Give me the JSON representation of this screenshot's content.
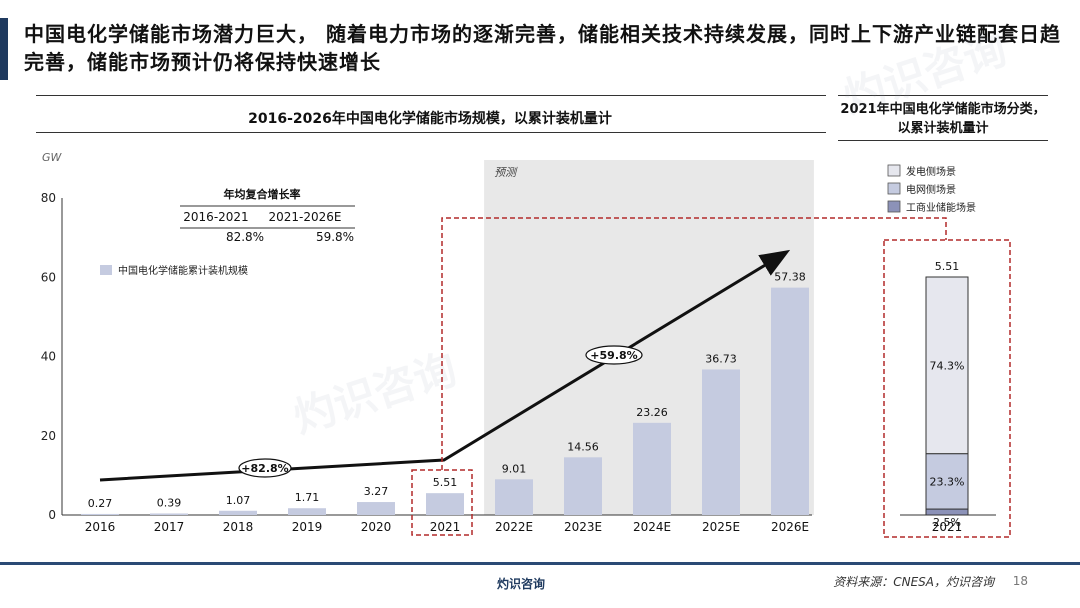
{
  "headline": "中国电化学储能市场潜力巨大， 随着电力市场的逐渐完善，储能相关技术持续发展，同时上下游产业链配套日趋完善，储能市场预计仍将保持快速增长",
  "page_number": "18",
  "source": "资料来源：CNESA，灼识咨询",
  "footer_logo": "灼识咨询",
  "watermark": "灼识咨询",
  "colors": {
    "bar": "#c5cbe0",
    "accent": "#1f3a5f",
    "dashed": "#b22a2a",
    "forecast_bg": "#e8e8e8"
  },
  "chart_data": [
    {
      "type": "bar",
      "title": "2016-2026年中国电化学储能市场规模，以累计装机量计",
      "ylabel": "GW",
      "ylim": [
        0,
        80
      ],
      "yticks": [
        0,
        20,
        40,
        60,
        80
      ],
      "categories": [
        "2016",
        "2017",
        "2018",
        "2019",
        "2020",
        "2021",
        "2022E",
        "2023E",
        "2024E",
        "2025E",
        "2026E"
      ],
      "series": [
        {
          "name": "中国电化学储能累计装机规模",
          "values": [
            0.27,
            0.39,
            1.07,
            1.71,
            3.27,
            5.51,
            9.01,
            14.56,
            23.26,
            36.73,
            57.38
          ],
          "labels": [
            "0.27",
            "0.39",
            "1.07",
            "1.71",
            "3.27",
            "5.51",
            "9.01",
            "14.56",
            "23.26",
            "36.73",
            "57.38"
          ]
        }
      ],
      "forecast_label": "预测",
      "cagr_table": {
        "title": "年均复合增长率",
        "headers": [
          "2016-2021",
          "2021-2026E"
        ],
        "values": [
          "82.8%",
          "59.8%"
        ]
      },
      "cagr_badges": [
        "+82.8%",
        "+59.8%"
      ]
    },
    {
      "type": "bar",
      "title": "2021年中国电化学储能市场分类，以累计装机量计",
      "categories": [
        "2021"
      ],
      "total_label": "5.51",
      "legend": [
        "发电侧场景",
        "电网侧场景",
        "工商业储能场景"
      ],
      "series": [
        {
          "name": "工商业储能场景",
          "value": 2.5,
          "label": "2.5%",
          "color": "#8c92b8"
        },
        {
          "name": "电网侧场景",
          "value": 23.3,
          "label": "23.3%",
          "color": "#c5cbe0"
        },
        {
          "name": "发电侧场景",
          "value": 74.3,
          "label": "74.3%",
          "color": "#e6e7ee"
        }
      ]
    }
  ]
}
